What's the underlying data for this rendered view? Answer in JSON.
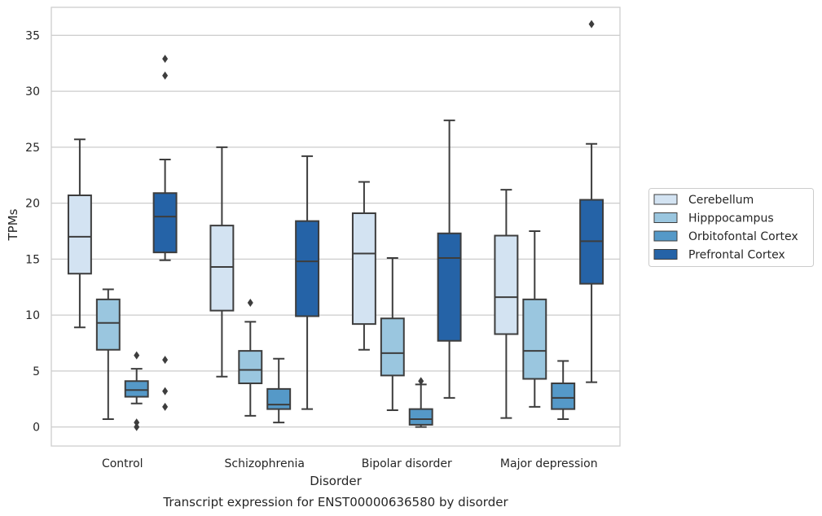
{
  "chart_data": {
    "type": "boxplot",
    "xlabel": "Disorder",
    "ylabel": "TPMs",
    "caption": "Transcript expression for ENST00000636580 by disorder",
    "ylim": [
      -1.7,
      37.5
    ],
    "yticks": [
      0,
      5,
      10,
      15,
      20,
      25,
      30,
      35
    ],
    "grid": "horizontal",
    "legend_position": "right",
    "categories": [
      "Control",
      "Schizophrenia",
      "Bipolar disorder",
      "Major depression"
    ],
    "series": [
      {
        "name": "Cerebellum",
        "color": "#d3e3f2",
        "boxes": [
          {
            "whisker_low": 8.9,
            "q1": 13.7,
            "median": 17.0,
            "q3": 20.7,
            "whisker_high": 25.7,
            "outliers": []
          },
          {
            "whisker_low": 4.5,
            "q1": 10.4,
            "median": 14.3,
            "q3": 18.0,
            "whisker_high": 25.0,
            "outliers": []
          },
          {
            "whisker_low": 6.9,
            "q1": 9.2,
            "median": 15.5,
            "q3": 19.1,
            "whisker_high": 21.9,
            "outliers": []
          },
          {
            "whisker_low": 0.8,
            "q1": 8.3,
            "median": 11.6,
            "q3": 17.1,
            "whisker_high": 21.2,
            "outliers": []
          }
        ]
      },
      {
        "name": "Hipppocampus",
        "color": "#9ac6df",
        "boxes": [
          {
            "whisker_low": 0.7,
            "q1": 6.9,
            "median": 9.3,
            "q3": 11.4,
            "whisker_high": 12.3,
            "outliers": []
          },
          {
            "whisker_low": 1.0,
            "q1": 3.9,
            "median": 5.1,
            "q3": 6.8,
            "whisker_high": 9.4,
            "outliers": [
              11.1
            ]
          },
          {
            "whisker_low": 1.5,
            "q1": 4.6,
            "median": 6.6,
            "q3": 9.7,
            "whisker_high": 15.1,
            "outliers": []
          },
          {
            "whisker_low": 1.8,
            "q1": 4.3,
            "median": 6.8,
            "q3": 11.4,
            "whisker_high": 17.5,
            "outliers": []
          }
        ]
      },
      {
        "name": "Orbitofontal Cortex",
        "color": "#5599c8",
        "boxes": [
          {
            "whisker_low": 2.1,
            "q1": 2.7,
            "median": 3.3,
            "q3": 4.1,
            "whisker_high": 5.2,
            "outliers": [
              6.4,
              0.4,
              0.0
            ]
          },
          {
            "whisker_low": 0.4,
            "q1": 1.6,
            "median": 2.0,
            "q3": 3.4,
            "whisker_high": 6.1,
            "outliers": []
          },
          {
            "whisker_low": 0.0,
            "q1": 0.2,
            "median": 0.7,
            "q3": 1.6,
            "whisker_high": 3.8,
            "outliers": [
              4.1
            ]
          },
          {
            "whisker_low": 0.7,
            "q1": 1.6,
            "median": 2.6,
            "q3": 3.9,
            "whisker_high": 5.9,
            "outliers": []
          }
        ]
      },
      {
        "name": "Prefrontal Cortex",
        "color": "#2563a7",
        "boxes": [
          {
            "whisker_low": 14.9,
            "q1": 15.6,
            "median": 18.8,
            "q3": 20.9,
            "whisker_high": 23.9,
            "outliers": [
              32.9,
              31.4,
              6.0,
              3.2,
              1.8
            ]
          },
          {
            "whisker_low": 1.6,
            "q1": 9.9,
            "median": 14.8,
            "q3": 18.4,
            "whisker_high": 24.2,
            "outliers": []
          },
          {
            "whisker_low": 2.6,
            "q1": 7.7,
            "median": 15.1,
            "q3": 17.3,
            "whisker_high": 27.4,
            "outliers": []
          },
          {
            "whisker_low": 4.0,
            "q1": 12.8,
            "median": 16.6,
            "q3": 20.3,
            "whisker_high": 25.3,
            "outliers": [
              36.0
            ]
          }
        ]
      }
    ]
  }
}
